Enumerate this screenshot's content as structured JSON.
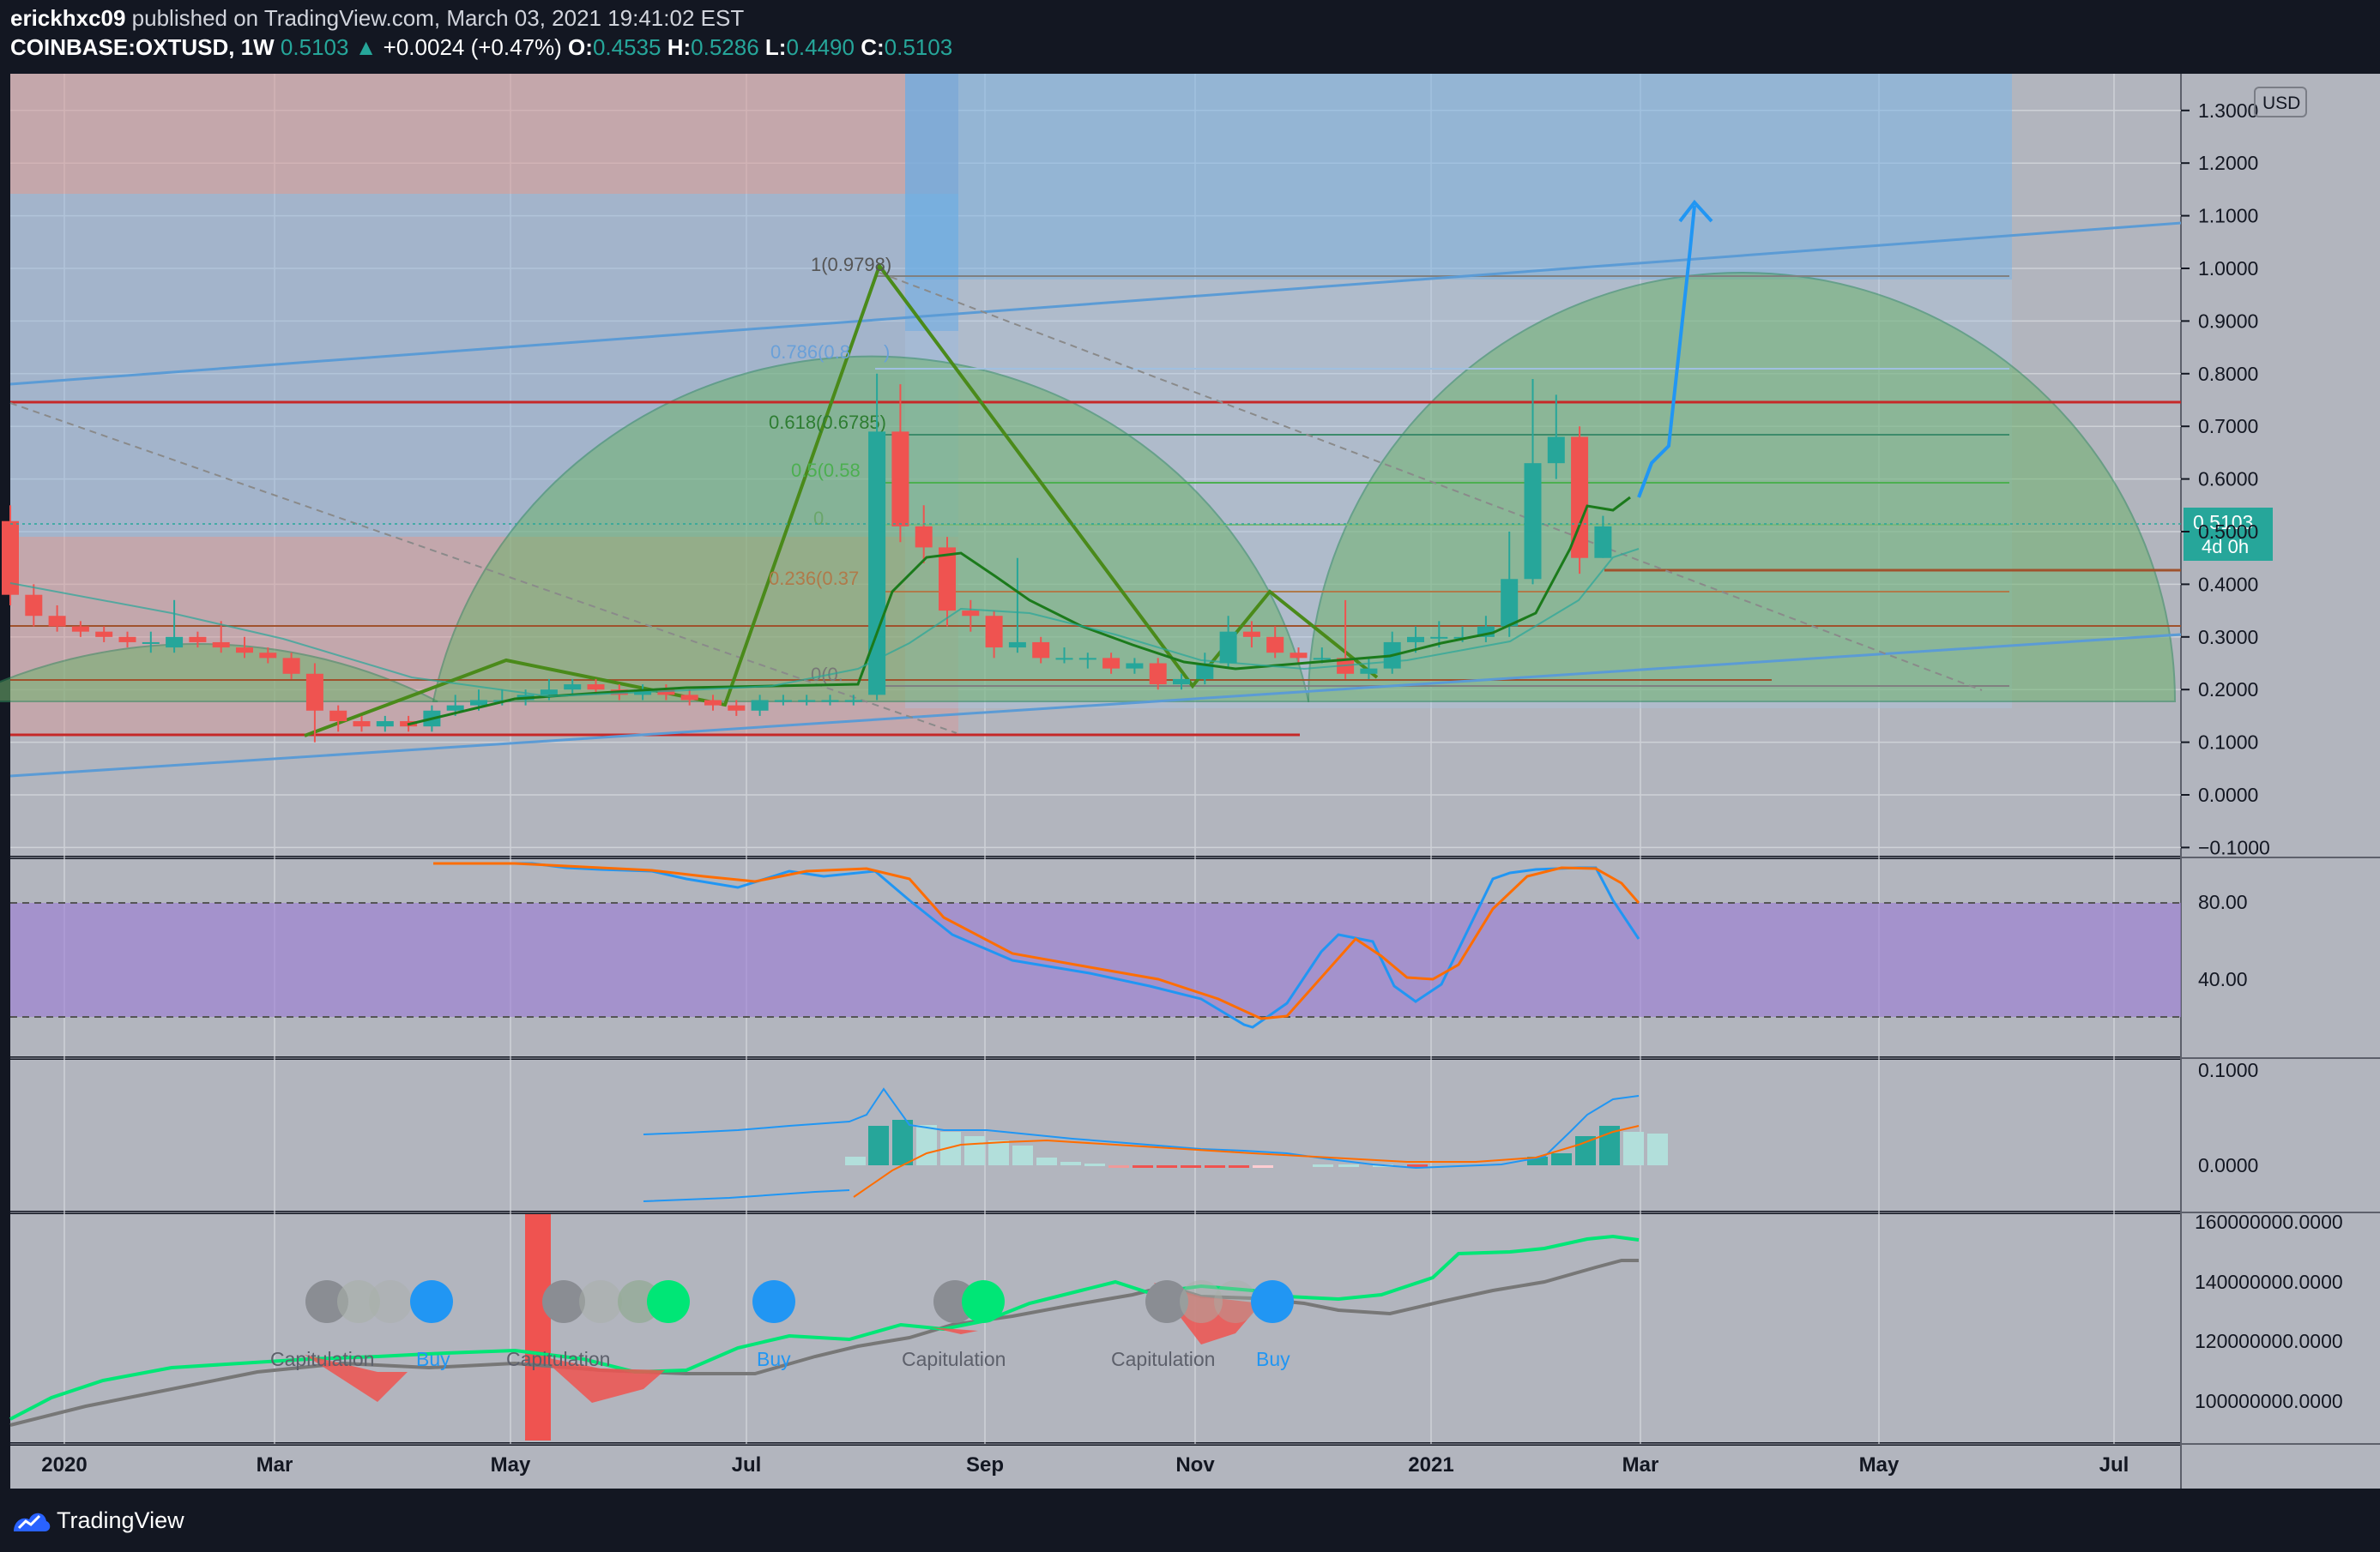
{
  "header": {
    "author": "erickhxc09",
    "published": " published on TradingView.com, March 03, 2021 19:41:02 EST",
    "symbol": "COINBASE:OXTUSD, 1W",
    "last": "0.5103",
    "arrow": "▲",
    "change": "+0.0024 (+0.47%)",
    "o_label": "O:",
    "o": "0.4535",
    "h_label": "H:",
    "h": "0.5286",
    "l_label": "L:",
    "l": "0.4490",
    "c_label": "C:",
    "c": "0.5103"
  },
  "price_axis": {
    "currency": "USD",
    "ticks": [
      "1.3000",
      "1.2000",
      "1.1000",
      "1.0000",
      "0.9000",
      "0.8000",
      "0.7000",
      "0.6000",
      "0.5000",
      "0.4000",
      "0.3000",
      "0.2000",
      "0.1000",
      "0.0000",
      "−0.1000"
    ],
    "last_price": "0.5103",
    "countdown": "4d 0h"
  },
  "stoch_axis": {
    "ticks": [
      "80.00",
      "40.00"
    ]
  },
  "macd_axis": {
    "ticks": [
      "0.1000",
      "0.0000"
    ]
  },
  "vol_axis": {
    "ticks": [
      "160000000.0000",
      "140000000.0000",
      "120000000.0000",
      "100000000.0000"
    ]
  },
  "time_axis": {
    "ticks": [
      "2020",
      "Mar",
      "May",
      "Jul",
      "Sep",
      "Nov",
      "2021",
      "Mar",
      "May",
      "Jul"
    ]
  },
  "fib_labels": [
    "1(0.9798)",
    "0.786(0.8",
    ")",
    "0.618(0.6785)",
    "0.5(0.58",
    "0.",
    "0.236(0.37",
    "0(0."
  ],
  "indicator_labels": [
    "Capitulation",
    "Buy",
    "Capitulation",
    "Buy",
    "Capitulation",
    "Capitulation",
    "Buy"
  ],
  "footer": {
    "brand": "TradingView"
  },
  "colors": {
    "background": "#131722",
    "pane": "#b2b5be",
    "up": "#26a69a",
    "down": "#ef5350",
    "fib_green": "#4caf50",
    "stoch_band": "#9c7fd4",
    "macd": "#2196f3",
    "signal": "#ff6d00"
  },
  "chart_data": {
    "type": "candlestick",
    "title": "COINBASE:OXTUSD, 1W",
    "x_range": [
      "2019-12",
      "2021-07"
    ],
    "ylim": [
      -0.12,
      1.35
    ],
    "candles": [
      {
        "o": 0.52,
        "c": 0.38,
        "h": 0.55,
        "l": 0.36
      },
      {
        "o": 0.38,
        "c": 0.34,
        "h": 0.4,
        "l": 0.32
      },
      {
        "o": 0.34,
        "c": 0.32,
        "h": 0.36,
        "l": 0.31
      },
      {
        "o": 0.32,
        "c": 0.31,
        "h": 0.33,
        "l": 0.3
      },
      {
        "o": 0.31,
        "c": 0.3,
        "h": 0.32,
        "l": 0.29
      },
      {
        "o": 0.3,
        "c": 0.29,
        "h": 0.31,
        "l": 0.28
      },
      {
        "o": 0.29,
        "c": 0.29,
        "h": 0.31,
        "l": 0.27
      },
      {
        "o": 0.28,
        "c": 0.3,
        "h": 0.37,
        "l": 0.27
      },
      {
        "o": 0.3,
        "c": 0.29,
        "h": 0.31,
        "l": 0.28
      },
      {
        "o": 0.29,
        "c": 0.28,
        "h": 0.33,
        "l": 0.27
      },
      {
        "o": 0.28,
        "c": 0.27,
        "h": 0.3,
        "l": 0.26
      },
      {
        "o": 0.27,
        "c": 0.26,
        "h": 0.28,
        "l": 0.25
      },
      {
        "o": 0.26,
        "c": 0.23,
        "h": 0.27,
        "l": 0.22
      },
      {
        "o": 0.23,
        "c": 0.16,
        "h": 0.25,
        "l": 0.1
      },
      {
        "o": 0.16,
        "c": 0.14,
        "h": 0.17,
        "l": 0.12
      },
      {
        "o": 0.14,
        "c": 0.13,
        "h": 0.15,
        "l": 0.12
      },
      {
        "o": 0.13,
        "c": 0.14,
        "h": 0.15,
        "l": 0.12
      },
      {
        "o": 0.14,
        "c": 0.13,
        "h": 0.15,
        "l": 0.12
      },
      {
        "o": 0.13,
        "c": 0.16,
        "h": 0.17,
        "l": 0.12
      },
      {
        "o": 0.16,
        "c": 0.17,
        "h": 0.19,
        "l": 0.15
      },
      {
        "o": 0.17,
        "c": 0.18,
        "h": 0.2,
        "l": 0.16
      },
      {
        "o": 0.18,
        "c": 0.18,
        "h": 0.2,
        "l": 0.17
      },
      {
        "o": 0.18,
        "c": 0.19,
        "h": 0.2,
        "l": 0.17
      },
      {
        "o": 0.19,
        "c": 0.2,
        "h": 0.22,
        "l": 0.18
      },
      {
        "o": 0.2,
        "c": 0.21,
        "h": 0.22,
        "l": 0.19
      },
      {
        "o": 0.21,
        "c": 0.2,
        "h": 0.22,
        "l": 0.19
      },
      {
        "o": 0.2,
        "c": 0.19,
        "h": 0.21,
        "l": 0.18
      },
      {
        "o": 0.19,
        "c": 0.2,
        "h": 0.21,
        "l": 0.18
      },
      {
        "o": 0.2,
        "c": 0.19,
        "h": 0.21,
        "l": 0.18
      },
      {
        "o": 0.19,
        "c": 0.18,
        "h": 0.2,
        "l": 0.17
      },
      {
        "o": 0.18,
        "c": 0.17,
        "h": 0.19,
        "l": 0.16
      },
      {
        "o": 0.17,
        "c": 0.16,
        "h": 0.18,
        "l": 0.15
      },
      {
        "o": 0.16,
        "c": 0.18,
        "h": 0.19,
        "l": 0.15
      },
      {
        "o": 0.18,
        "c": 0.18,
        "h": 0.19,
        "l": 0.17
      },
      {
        "o": 0.18,
        "c": 0.18,
        "h": 0.19,
        "l": 0.17
      },
      {
        "o": 0.18,
        "c": 0.18,
        "h": 0.19,
        "l": 0.17
      },
      {
        "o": 0.18,
        "c": 0.18,
        "h": 0.19,
        "l": 0.17
      },
      {
        "o": 0.19,
        "c": 0.69,
        "h": 0.8,
        "l": 0.18
      },
      {
        "o": 0.69,
        "c": 0.51,
        "h": 0.78,
        "l": 0.48
      },
      {
        "o": 0.51,
        "c": 0.47,
        "h": 0.55,
        "l": 0.44
      },
      {
        "o": 0.47,
        "c": 0.35,
        "h": 0.49,
        "l": 0.32
      },
      {
        "o": 0.35,
        "c": 0.34,
        "h": 0.37,
        "l": 0.31
      },
      {
        "o": 0.34,
        "c": 0.28,
        "h": 0.35,
        "l": 0.26
      },
      {
        "o": 0.28,
        "c": 0.29,
        "h": 0.45,
        "l": 0.27
      },
      {
        "o": 0.29,
        "c": 0.26,
        "h": 0.3,
        "l": 0.25
      },
      {
        "o": 0.26,
        "c": 0.26,
        "h": 0.28,
        "l": 0.25
      },
      {
        "o": 0.26,
        "c": 0.26,
        "h": 0.27,
        "l": 0.24
      },
      {
        "o": 0.26,
        "c": 0.24,
        "h": 0.27,
        "l": 0.23
      },
      {
        "o": 0.24,
        "c": 0.25,
        "h": 0.26,
        "l": 0.23
      },
      {
        "o": 0.25,
        "c": 0.21,
        "h": 0.26,
        "l": 0.2
      },
      {
        "o": 0.21,
        "c": 0.22,
        "h": 0.23,
        "l": 0.2
      },
      {
        "o": 0.22,
        "c": 0.25,
        "h": 0.27,
        "l": 0.21
      },
      {
        "o": 0.25,
        "c": 0.31,
        "h": 0.34,
        "l": 0.24
      },
      {
        "o": 0.31,
        "c": 0.3,
        "h": 0.33,
        "l": 0.28
      },
      {
        "o": 0.3,
        "c": 0.27,
        "h": 0.32,
        "l": 0.26
      },
      {
        "o": 0.27,
        "c": 0.26,
        "h": 0.28,
        "l": 0.25
      },
      {
        "o": 0.26,
        "c": 0.26,
        "h": 0.28,
        "l": 0.25
      },
      {
        "o": 0.26,
        "c": 0.23,
        "h": 0.37,
        "l": 0.22
      },
      {
        "o": 0.23,
        "c": 0.24,
        "h": 0.26,
        "l": 0.22
      },
      {
        "o": 0.24,
        "c": 0.29,
        "h": 0.31,
        "l": 0.23
      },
      {
        "o": 0.29,
        "c": 0.3,
        "h": 0.32,
        "l": 0.27
      },
      {
        "o": 0.3,
        "c": 0.3,
        "h": 0.33,
        "l": 0.28
      },
      {
        "o": 0.3,
        "c": 0.3,
        "h": 0.32,
        "l": 0.29
      },
      {
        "o": 0.3,
        "c": 0.32,
        "h": 0.34,
        "l": 0.29
      },
      {
        "o": 0.32,
        "c": 0.41,
        "h": 0.5,
        "l": 0.3
      },
      {
        "o": 0.41,
        "c": 0.63,
        "h": 0.79,
        "l": 0.4
      },
      {
        "o": 0.63,
        "c": 0.68,
        "h": 0.76,
        "l": 0.6
      },
      {
        "o": 0.68,
        "c": 0.45,
        "h": 0.7,
        "l": 0.42
      },
      {
        "o": 0.45,
        "c": 0.51,
        "h": 0.53,
        "l": 0.45
      }
    ]
  }
}
